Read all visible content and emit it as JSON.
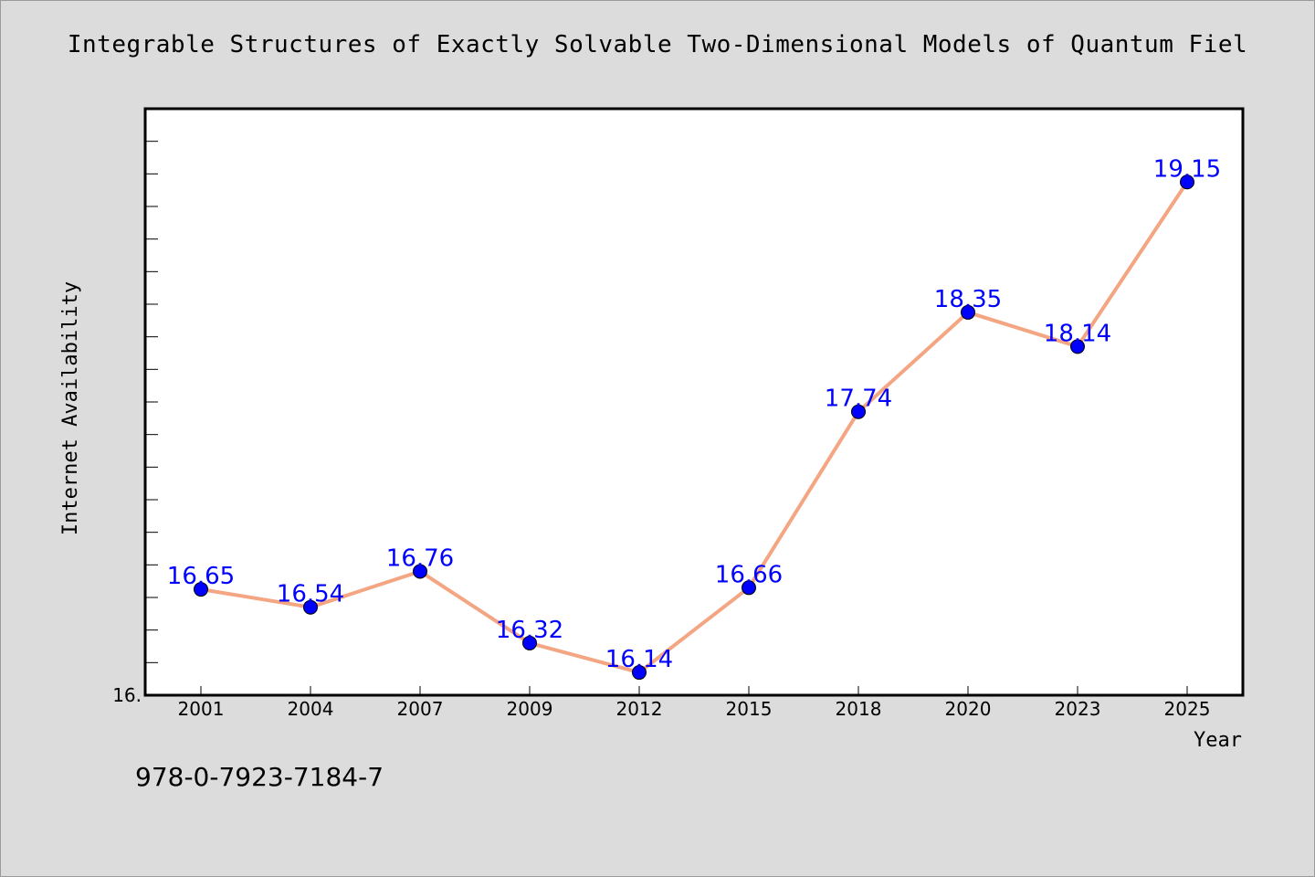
{
  "chart_data": {
    "type": "line",
    "title": "Integrable Structures of Exactly Solvable Two-Dimensional Models of Quantum Fiel",
    "xlabel": "Year",
    "ylabel": "Internet Availability",
    "categories": [
      "2001",
      "2004",
      "2007",
      "2009",
      "2012",
      "2015",
      "2018",
      "2020",
      "2023",
      "2025"
    ],
    "series": [
      {
        "values": [
          16.65,
          16.54,
          16.76,
          16.32,
          16.14,
          16.66,
          17.74,
          18.35,
          18.14,
          19.15
        ],
        "line_color": "#f4a582",
        "marker_color": "#0000ff"
      }
    ],
    "data_labels": [
      "16.65",
      "16.54",
      "16.76",
      "16.32",
      "16.14",
      "16.66",
      "17.74",
      "18.35",
      "18.14",
      "19.15"
    ],
    "y_tick_labels": [
      "16."
    ],
    "ylim": [
      16.0,
      19.6
    ],
    "grid": false,
    "legend": "none"
  },
  "footer": {
    "isbn": "978-0-7923-7184-7"
  },
  "colors": {
    "background": "#dcdcdc",
    "plot_background": "#ffffff"
  }
}
